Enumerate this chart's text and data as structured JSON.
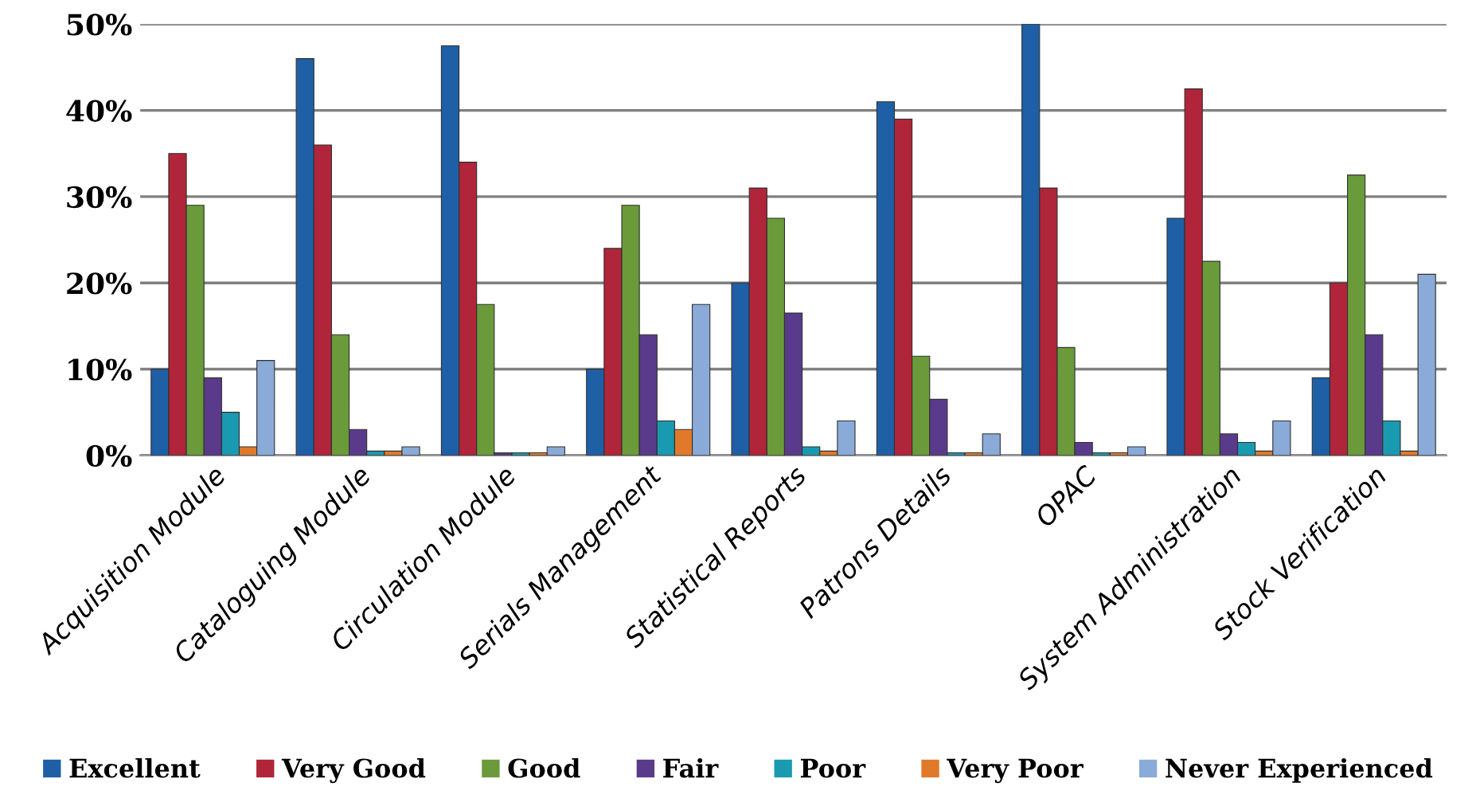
{
  "chart_data": {
    "type": "bar",
    "categories": [
      "Acquisition Module",
      "Cataloguing Module",
      "Circulation Module",
      "Serials Management",
      "Statistical Reports",
      "Patrons Details",
      "OPAC",
      "System Administration",
      "Stock Verification"
    ],
    "series": [
      {
        "name": "Excellent",
        "color": "#1f5fa6",
        "values": [
          10,
          46,
          47.5,
          10,
          20,
          41,
          50,
          27.5,
          9
        ]
      },
      {
        "name": "Very Good",
        "color": "#b0253a",
        "values": [
          35,
          36,
          34,
          24,
          31,
          39,
          31,
          42.5,
          20
        ]
      },
      {
        "name": "Good",
        "color": "#6a9a3a",
        "values": [
          29,
          14,
          17.5,
          29,
          27.5,
          11.5,
          12.5,
          22.5,
          32.5
        ]
      },
      {
        "name": "Fair",
        "color": "#5a3a8a",
        "values": [
          9,
          3,
          0.3,
          14,
          16.5,
          6.5,
          1.5,
          2.5,
          14
        ]
      },
      {
        "name": "Poor",
        "color": "#1a9ab0",
        "values": [
          5,
          0.5,
          0.3,
          4,
          1,
          0.3,
          0.3,
          1.5,
          4
        ]
      },
      {
        "name": "Very Poor",
        "color": "#e07a2a",
        "values": [
          1,
          0.5,
          0.3,
          3,
          0.5,
          0.3,
          0.3,
          0.5,
          0.5
        ]
      },
      {
        "name": "Never Experienced",
        "color": "#8aaad8",
        "values": [
          11,
          1,
          1,
          17.5,
          4,
          2.5,
          1,
          4,
          21
        ]
      }
    ],
    "ylim": [
      0,
      50
    ],
    "yticks": [
      {
        "value": 0,
        "label": "0%"
      },
      {
        "value": 10,
        "label": "10%"
      },
      {
        "value": 20,
        "label": "20%"
      },
      {
        "value": 30,
        "label": "30%"
      },
      {
        "value": 40,
        "label": "40%"
      },
      {
        "value": 50,
        "label": "50%"
      }
    ],
    "grid": "y",
    "legend": "bottom"
  }
}
